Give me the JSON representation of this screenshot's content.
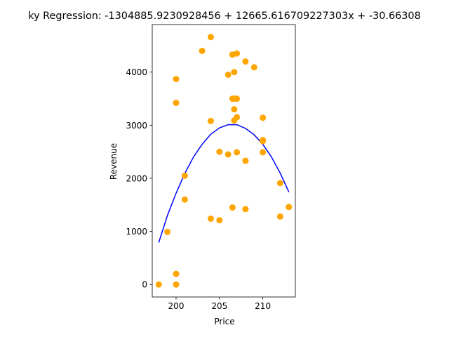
{
  "chart_data": {
    "type": "scatter",
    "title": "ky Regression: -1304885.9230928456 + 12665.616709227303x + -30.66308",
    "xlabel": "Price",
    "ylabel": "Revenue",
    "xlim": [
      197.25,
      213.75
    ],
    "ylim": [
      -235,
      4895
    ],
    "xticks": [
      200,
      205,
      210
    ],
    "yticks": [
      0,
      1000,
      2000,
      3000,
      4000
    ],
    "grid": false,
    "series": [
      {
        "kind": "scatter",
        "color": "#FFA500",
        "x": [
          198,
          200,
          200,
          199,
          200,
          200,
          201,
          201,
          203,
          204,
          204,
          204,
          205,
          205,
          206,
          206,
          206.5,
          206.5,
          206.5,
          206.7,
          206.7,
          206.7,
          206.7,
          207,
          207,
          207,
          207,
          208,
          208,
          208,
          209,
          210,
          210,
          210,
          210,
          212,
          212,
          213
        ],
        "y": [
          0,
          0,
          200,
          990,
          3420,
          3870,
          1600,
          2050,
          4400,
          4660,
          3080,
          1240,
          2500,
          1210,
          3950,
          2450,
          4330,
          3500,
          1450,
          4000,
          3300,
          3500,
          3090,
          4350,
          3500,
          3150,
          2490,
          4200,
          2330,
          1420,
          4090,
          3140,
          2720,
          2490,
          2700,
          1910,
          1280,
          1460
        ]
      },
      {
        "kind": "line",
        "color": "#0000FF",
        "x": [
          198,
          199,
          200,
          201,
          202,
          203,
          204,
          205,
          206,
          207,
          208,
          209,
          210,
          211,
          212,
          213
        ],
        "y": [
          790,
          1300,
          1720,
          2090,
          2400,
          2640,
          2830,
          2950,
          3010,
          3010,
          2940,
          2820,
          2640,
          2400,
          2100,
          1740
        ]
      }
    ]
  }
}
